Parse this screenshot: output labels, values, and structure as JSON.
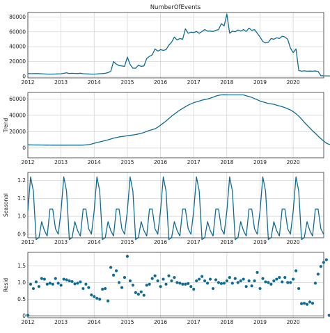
{
  "chart_data": [
    {
      "type": "line",
      "title": "NumberOfEvents",
      "ylabel": "",
      "xlim": [
        2012.0,
        2020.92
      ],
      "ylim": [
        -2000,
        86000
      ],
      "x_ticks": [
        "2012",
        "2013",
        "2014",
        "2015",
        "2016",
        "2017",
        "2018",
        "2019",
        "2020"
      ],
      "y_ticks": [
        "0",
        "20000",
        "40000",
        "60000",
        "80000"
      ],
      "x_start": 2012.0,
      "x_step": 0.0833333,
      "values": [
        3800,
        3600,
        3700,
        3800,
        3700,
        3500,
        3300,
        3100,
        3000,
        3100,
        3200,
        3400,
        3500,
        4200,
        4800,
        3900,
        4200,
        4000,
        3800,
        4300,
        3600,
        3400,
        3200,
        3000,
        3100,
        3300,
        3600,
        3800,
        4200,
        5000,
        7000,
        20000,
        16500,
        14500,
        14000,
        13500,
        26000,
        16000,
        11000,
        11000,
        15000,
        13500,
        14000,
        24000,
        27000,
        29000,
        37000,
        34000,
        36000,
        35000,
        36000,
        42000,
        46000,
        53000,
        49000,
        51000,
        50000,
        64000,
        58000,
        59500,
        59000,
        60500,
        58000,
        60500,
        63000,
        61000,
        61000,
        60500,
        62000,
        63000,
        71000,
        68000,
        84000,
        58000,
        61000,
        60000,
        62500,
        61000,
        63000,
        60500,
        65000,
        62000,
        63000,
        58000,
        53000,
        47000,
        45000,
        46000,
        51000,
        50000,
        52000,
        51000,
        54000,
        53000,
        50000,
        38000,
        32000,
        37000,
        8000,
        7000,
        7500,
        7000,
        7200,
        7000,
        7300,
        6500,
        1000,
        800,
        700,
        600,
        600,
        600,
        600,
        600,
        600,
        600,
        600,
        600,
        600
      ]
    },
    {
      "type": "line",
      "title": "",
      "ylabel": "Trend",
      "xlim": [
        2012.0,
        2020.92
      ],
      "ylim": [
        -12000,
        68000
      ],
      "x_ticks": [
        "2012",
        "2013",
        "2014",
        "2015",
        "2016",
        "2017",
        "2018",
        "2019",
        "2020"
      ],
      "y_ticks": [
        "0",
        "20000",
        "40000",
        "60000"
      ],
      "x_start": 2012.0,
      "x_step": 0.0833333,
      "values": [
        3800,
        3800,
        3750,
        3700,
        3700,
        3650,
        3600,
        3600,
        3550,
        3500,
        3500,
        3500,
        3500,
        3500,
        3500,
        3500,
        3500,
        3500,
        3500,
        3500,
        3600,
        3800,
        4200,
        4800,
        5800,
        6800,
        7500,
        8300,
        9100,
        10000,
        11000,
        12000,
        12800,
        13500,
        14000,
        14500,
        15000,
        15500,
        16000,
        16500,
        17200,
        18000,
        19000,
        20300,
        21500,
        22500,
        23500,
        25500,
        28000,
        30500,
        33000,
        36000,
        39000,
        41500,
        44000,
        46500,
        48500,
        50500,
        52500,
        54000,
        55500,
        56500,
        57500,
        58500,
        59300,
        60000,
        61000,
        62200,
        63500,
        64500,
        65000,
        65200,
        65000,
        65000,
        65000,
        65000,
        65000,
        65000,
        65000,
        64000,
        63000,
        62000,
        60500,
        59000,
        57500,
        56500,
        55500,
        54500,
        54000,
        53500,
        52500,
        51500,
        50500,
        49500,
        48000,
        46500,
        44500,
        42000,
        39000,
        35500,
        31500,
        28000,
        24500,
        21000,
        18000,
        14500,
        11500,
        8500,
        6000,
        4500,
        3500,
        3000,
        2500,
        2000,
        1500,
        1000,
        500,
        0,
        -1500,
        -3500,
        -5500,
        -7500,
        -9000,
        -10500
      ]
    },
    {
      "type": "line",
      "title": "",
      "ylabel": "Seasonal",
      "xlim": [
        2012.0,
        2020.92
      ],
      "ylim": [
        0.88,
        1.245
      ],
      "x_ticks": [
        "2012",
        "2013",
        "2014",
        "2015",
        "2016",
        "2017",
        "2018",
        "2019",
        "2020"
      ],
      "y_ticks": [
        "0.9",
        "1.0",
        "1.1",
        "1.2"
      ],
      "x_start": 2012.0,
      "x_step": 0.0833333,
      "season": [
        1.03,
        1.22,
        1.14,
        0.87,
        0.88,
        0.97,
        0.92,
        0.89,
        1.04,
        1.04,
        0.93,
        0.9
      ],
      "cycles": 9
    },
    {
      "type": "scatter",
      "title": "",
      "ylabel": "Resid",
      "xlim": [
        2012.0,
        2020.92
      ],
      "ylim": [
        -0.05,
        1.9
      ],
      "x_ticks": [
        "2012",
        "2013",
        "2014",
        "2015",
        "2016",
        "2017",
        "2018",
        "2019",
        "2020"
      ],
      "y_ticks": [
        "0",
        "0.5",
        "1.0",
        "1.5"
      ],
      "x_start": 2012.0,
      "x_step": 0.0833333,
      "baseline": 0,
      "values": [
        0.02,
        0.95,
        0.82,
        1.02,
        0.88,
        1.12,
        1.1,
        0.95,
        0.98,
        0.95,
        1.12,
        0.98,
        0.92,
        1.1,
        1.08,
        1.05,
        1.03,
        0.96,
        0.98,
        1.02,
        0.82,
        0.95,
        0.85,
        0.63,
        0.58,
        0.53,
        0.5,
        0.8,
        0.82,
        0.45,
        1.45,
        1.22,
        1.35,
        1.0,
        0.85,
        1.15,
        1.78,
        1.05,
        0.92,
        0.7,
        0.65,
        0.72,
        0.62,
        0.92,
        0.95,
        1.12,
        1.2,
        1.05,
        0.88,
        1.1,
        0.95,
        1.2,
        1.05,
        1.15,
        1.0,
        0.98,
        0.95,
        0.95,
        0.97,
        0.88,
        0.8,
        1.05,
        1.1,
        1.18,
        1.05,
        0.98,
        1.1,
        0.82,
        1.08,
        1.0,
        0.97,
        0.98,
        1.05,
        1.15,
        0.98,
        1.12,
        1.0,
        1.05,
        1.1,
        0.88,
        1.05,
        0.9,
        1.05,
        1.3,
        0.82,
        1.12,
        1.02,
        1.0,
        0.95,
        1.05,
        1.1,
        1.15,
        1.02,
        1.15,
        1.0,
        1.0,
        1.1,
        1.35,
        0.82,
        0.37,
        0.38,
        0.35,
        0.42,
        0.38,
        0.98,
        1.25,
        1.48,
        1.6,
        1.68,
        0.02,
        0.02,
        0.03,
        0.02,
        0.02,
        0.03,
        0.02,
        0.02,
        0.01,
        0.02,
        0.02,
        0.02,
        0.01,
        0.02
      ]
    }
  ],
  "colors": {
    "line": "#0e6b94",
    "grid": "#d5d5d5",
    "frame": "#333333",
    "zero_line": "#333333"
  }
}
